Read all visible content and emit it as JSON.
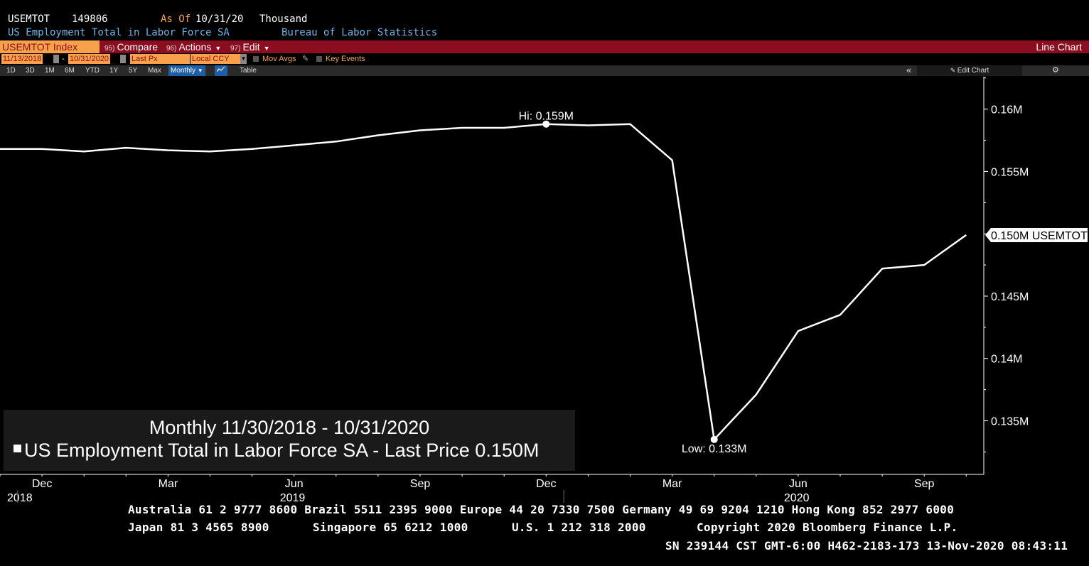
{
  "header": {
    "ticker": "USEMTOT",
    "value": "149806",
    "as_of_label": "As Of",
    "as_of_date": "10/31/20",
    "units": "Thousand",
    "series_name": "US Employment Total in Labor Force SA",
    "source": "Bureau of Labor Statistics"
  },
  "toolbar": {
    "security": "USEMTOT Index",
    "compare_num": "95)",
    "compare": "Compare",
    "actions_num": "96)",
    "actions": "Actions",
    "edit_num": "97)",
    "edit": "Edit",
    "chart_type": "Line Chart"
  },
  "controls": {
    "start_date": "11/13/2018",
    "end_date": "10/31/2020",
    "field": "Last Px",
    "currency": "Local CCY",
    "mov_avgs": "Mov Avgs",
    "key_events": "Key Events"
  },
  "periods": {
    "items": [
      "1D",
      "3D",
      "1M",
      "6M",
      "YTD",
      "1Y",
      "5Y",
      "Max"
    ],
    "frequency": "Monthly",
    "table": "Table",
    "edit_chart": "Edit Chart"
  },
  "legend": {
    "title": "Monthly 11/30/2018 - 10/31/2020",
    "series_label": "US Employment Total in Labor Force SA - Last Price",
    "last_value": "0.150M"
  },
  "footer": {
    "line1": "Australia 61 2 9777 8600 Brazil 5511 2395 9000 Europe 44 20 7330 7500 Germany 49 69 9204 1210 Hong Kong 852 2977 6000",
    "line2a": "Japan 81 3 4565 8900",
    "line2b": "Singapore 65 6212 1000",
    "line2c": "U.S. 1 212 318 2000",
    "line2d": "Copyright 2020 Bloomberg Finance L.P.",
    "line3": "SN 239144 CST  GMT-6:00 H462-2183-173 13-Nov-2020 08:43:11"
  },
  "chart_data": {
    "type": "line",
    "x": [
      "2018-11",
      "2018-12",
      "2019-01",
      "2019-02",
      "2019-03",
      "2019-04",
      "2019-05",
      "2019-06",
      "2019-07",
      "2019-08",
      "2019-09",
      "2019-10",
      "2019-11",
      "2019-12",
      "2020-01",
      "2020-02",
      "2020-03",
      "2020-04",
      "2020-05",
      "2020-06",
      "2020-07",
      "2020-08",
      "2020-09",
      "2020-10"
    ],
    "series": [
      {
        "values": [
          0.1568,
          0.1568,
          0.1566,
          0.1569,
          0.1567,
          0.1566,
          0.1568,
          0.1571,
          0.1574,
          0.1579,
          0.1583,
          0.1585,
          0.1585,
          0.1588,
          0.1587,
          0.1588,
          0.1559,
          0.1335,
          0.1371,
          0.1422,
          0.1435,
          0.1472,
          0.1475,
          0.1499
        ],
        "color": "#ffffff"
      }
    ],
    "ylim": [
      0.1307,
      0.1626
    ],
    "y_ticks": [
      "0.16M",
      "0.155M",
      "0.15M",
      "0.145M",
      "0.14M",
      "0.135M"
    ],
    "y_tick_values": [
      0.16,
      0.155,
      0.15,
      0.145,
      0.14,
      0.135
    ],
    "x_tick_labels": [
      "Dec",
      "Mar",
      "Jun",
      "Sep",
      "Dec",
      "Mar",
      "Jun",
      "Sep"
    ],
    "x_tick_index": [
      1,
      4,
      7,
      10,
      13,
      16,
      19,
      22
    ],
    "year_labels": [
      {
        "label": "2018",
        "index": 0
      },
      {
        "label": "2019",
        "index": 7
      },
      {
        "label": "2020",
        "index": 19
      }
    ],
    "hi_label": "Hi: 0.159M",
    "hi_index": 13,
    "low_label": "Low: 0.133M",
    "low_index": 17,
    "last_tag": "0.150M USEMTOT",
    "last_value": 0.1499,
    "y_axis_side": "right",
    "grid": false
  }
}
